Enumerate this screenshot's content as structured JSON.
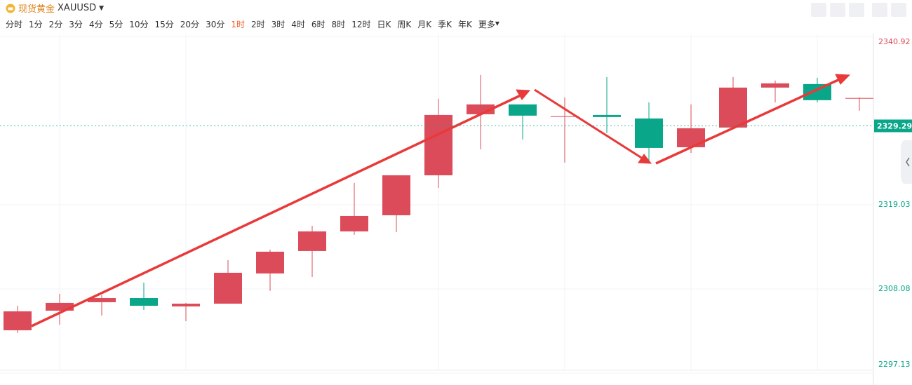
{
  "toolbar": {
    "symbol_name": "现货黄金",
    "symbol_code": "XAUUSD",
    "periods": [
      "分时",
      "1分",
      "2分",
      "3分",
      "4分",
      "5分",
      "10分",
      "15分",
      "20分",
      "30分",
      "1时",
      "2时",
      "3时",
      "4时",
      "6时",
      "8时",
      "12时",
      "日K",
      "周K",
      "月K",
      "季K",
      "年K"
    ],
    "active_period": "1时",
    "more": "更多"
  },
  "chart_data": {
    "type": "candlestick",
    "open": [
      2302.7,
      2305.25,
      2306.35,
      2306.89,
      2305.8,
      2306.16,
      2310.09,
      2313.01,
      2315.56,
      2317.66,
      2322.86,
      2330.8,
      2332.08,
      2330.5,
      2330.71,
      2330.25,
      2326.51,
      2329.07,
      2334.27,
      2334.73,
      2332.88
    ],
    "high": [
      2305.89,
      2307.44,
      2307.26,
      2308.9,
      2306.26,
      2311.82,
      2313.19,
      2316.29,
      2321.86,
      2322.86,
      2332.81,
      2335.91,
      2332.08,
      2332.99,
      2335.64,
      2332.35,
      2332.08,
      2335.64,
      2335.18,
      2335.55,
      2332.99
    ],
    "low": [
      2302.33,
      2303.43,
      2304.61,
      2305.34,
      2303.88,
      2306.16,
      2307.81,
      2309.63,
      2315.11,
      2315.47,
      2321.22,
      2326.24,
      2327.52,
      2324.51,
      2328.34,
      2324.69,
      2325.78,
      2329.07,
      2332.35,
      2332.35,
      2331.26
    ],
    "close": [
      2305.16,
      2306.26,
      2306.89,
      2305.89,
      2306.16,
      2310.18,
      2312.92,
      2315.56,
      2317.57,
      2322.86,
      2330.71,
      2332.08,
      2330.62,
      2330.55,
      2330.44,
      2326.42,
      2328.98,
      2334.27,
      2334.82,
      2332.63,
      2332.92
    ],
    "up_color": "#dc4b5a",
    "down_color": "#0aa68a",
    "ylim": [
      2297.13,
      2340.92
    ],
    "yticks": [
      2297.13,
      2308.08,
      2319.03,
      2340.92
    ],
    "current_price": 2329.29,
    "grid": true
  }
}
